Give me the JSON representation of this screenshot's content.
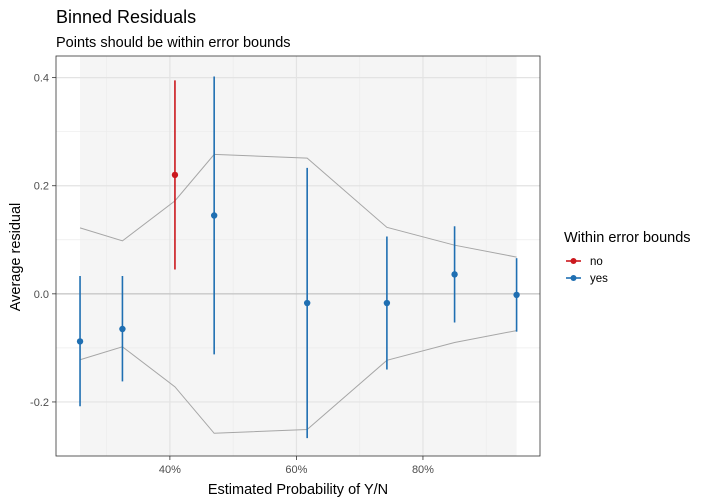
{
  "chart_data": {
    "type": "scatter",
    "title": "Binned Residuals",
    "subtitle": "Points should be within error bounds",
    "xlabel": "Estimated Probability of Y/N",
    "ylabel": "Average residual",
    "xlim": [
      0.22,
      0.985
    ],
    "ylim": [
      -0.3,
      0.44
    ],
    "x_ticks": [
      0.4,
      0.6,
      0.8
    ],
    "x_tick_labels": [
      "40%",
      "60%",
      "80%"
    ],
    "y_ticks": [
      -0.2,
      0.0,
      0.2,
      0.4
    ],
    "y_tick_labels": [
      "-0.2",
      "0.0",
      "0.2",
      "0.4"
    ],
    "legend": {
      "title": "Within error bounds",
      "position": "right",
      "entries": [
        {
          "label": "no",
          "color": "#cb181d"
        },
        {
          "label": "yes",
          "color": "#1f6fb2"
        }
      ]
    },
    "band": {
      "xmin": 0.258,
      "xmax": 0.948,
      "color": "#f5f5f5"
    },
    "points": [
      {
        "x": 0.258,
        "y": -0.088,
        "lo": -0.208,
        "hi": 0.033,
        "within": "yes"
      },
      {
        "x": 0.325,
        "y": -0.065,
        "lo": -0.162,
        "hi": 0.033,
        "within": "yes"
      },
      {
        "x": 0.408,
        "y": 0.22,
        "lo": 0.045,
        "hi": 0.395,
        "within": "no"
      },
      {
        "x": 0.47,
        "y": 0.145,
        "lo": -0.112,
        "hi": 0.402,
        "within": "yes"
      },
      {
        "x": 0.617,
        "y": -0.017,
        "lo": -0.267,
        "hi": 0.233,
        "within": "yes"
      },
      {
        "x": 0.743,
        "y": -0.017,
        "lo": -0.14,
        "hi": 0.106,
        "within": "yes"
      },
      {
        "x": 0.85,
        "y": 0.036,
        "lo": -0.053,
        "hi": 0.125,
        "within": "yes"
      },
      {
        "x": 0.948,
        "y": -0.002,
        "lo": -0.07,
        "hi": 0.066,
        "within": "yes"
      }
    ],
    "error_bound": {
      "x": [
        0.258,
        0.325,
        0.408,
        0.47,
        0.617,
        0.743,
        0.85,
        0.948
      ],
      "upper": [
        0.122,
        0.098,
        0.172,
        0.258,
        0.251,
        0.123,
        0.09,
        0.068
      ],
      "lower": [
        -0.122,
        -0.098,
        -0.172,
        -0.258,
        -0.251,
        -0.123,
        -0.09,
        -0.068
      ],
      "color": "#a6a6a6"
    },
    "zero_line": 0.0,
    "grid": true
  }
}
